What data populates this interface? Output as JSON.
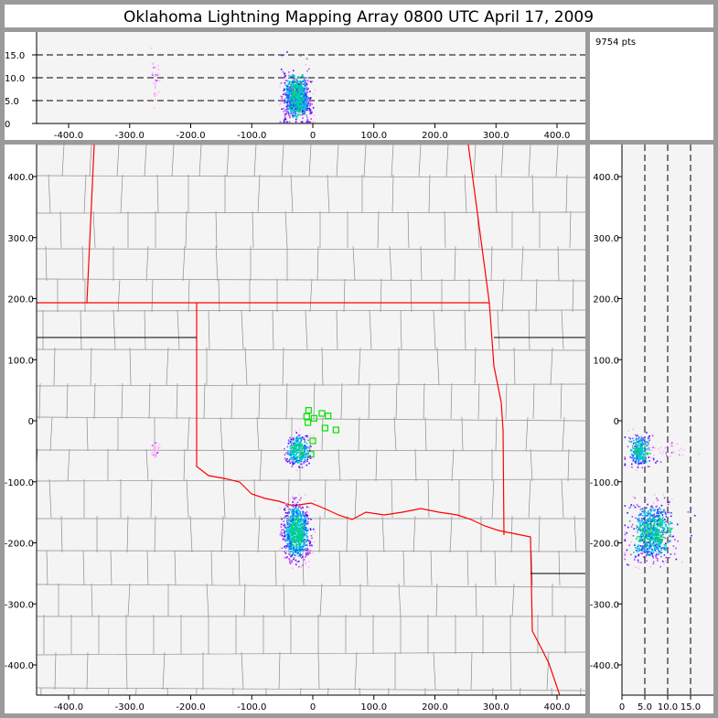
{
  "title": "Oklahoma Lightning Mapping Array   0800 UTC  April 17, 2009",
  "point_count": "9754 pts",
  "colors": {
    "background": "#9a9a9a",
    "panel": "#ffffff",
    "plot_area": "#f4f4f4",
    "state_border": "#ff0000",
    "county_border": "#8c8c8c",
    "station": "#00e000",
    "density_scale": [
      "#ffb3f5",
      "#c040ff",
      "#4a00ff",
      "#1060ff",
      "#00c8e6",
      "#00d060"
    ]
  },
  "plan_view": {
    "x_ticks": [
      "-400.0",
      "-300.0",
      "-200.0",
      "-100.0",
      "0",
      "100.0",
      "200.0",
      "300.0",
      "400.0"
    ],
    "x_tick_values": [
      -400,
      -300,
      -200,
      -100,
      0,
      100,
      200,
      300,
      400
    ],
    "y_ticks": [
      "400.0",
      "300.0",
      "200.0",
      "100.0",
      "0",
      "-100.0",
      "-200.0",
      "-300.0",
      "-400.0"
    ],
    "y_tick_values": [
      400,
      300,
      200,
      100,
      0,
      -100,
      -200,
      -300,
      -400
    ],
    "x_range_km": [
      -452,
      446
    ],
    "y_range_km": [
      -451,
      452
    ]
  },
  "altitude_view": {
    "y_ticks": [
      "0",
      "5.0",
      "10.0",
      "15.0"
    ],
    "y_tick_values": [
      0,
      5,
      10,
      15
    ],
    "dashed_levels": [
      5,
      10,
      15
    ],
    "z_range_km": [
      0,
      20
    ]
  },
  "side_view": {
    "x_ticks": [
      "0",
      "5.0",
      "10.0",
      "15.0"
    ],
    "x_tick_values": [
      0,
      5,
      10,
      15
    ],
    "dashed_levels": [
      5,
      10,
      15
    ]
  },
  "stations_km": [
    [
      -7,
      17
    ],
    [
      -10,
      7
    ],
    [
      -8,
      -3
    ],
    [
      2,
      4
    ],
    [
      15,
      12
    ],
    [
      25,
      8
    ],
    [
      20,
      -12
    ],
    [
      38,
      -15
    ],
    [
      0,
      -33
    ],
    [
      -3,
      -55
    ]
  ],
  "lightning_clusters": [
    {
      "x_km": [
        -55,
        5
      ],
      "y_km": [
        -10,
        -85
      ],
      "z_km": [
        1,
        10
      ],
      "points": 2600,
      "intensity": "high"
    },
    {
      "x_km": [
        -60,
        5
      ],
      "y_km": [
        -112,
        -250
      ],
      "z_km": [
        1,
        19
      ],
      "points": 6600,
      "intensity": "high"
    },
    {
      "x_km": [
        -268,
        -250
      ],
      "y_km": [
        -25,
        -70
      ],
      "z_km": [
        6,
        19
      ],
      "points": 260,
      "intensity": "low"
    }
  ]
}
